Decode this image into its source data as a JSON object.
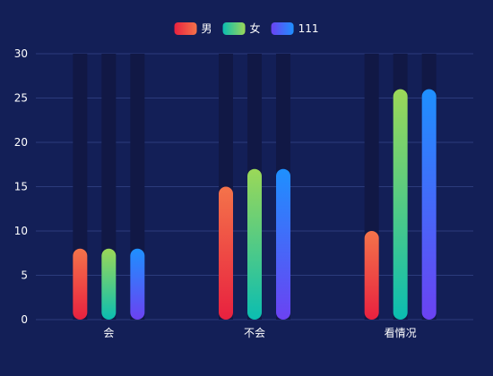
{
  "chart_data": {
    "type": "bar",
    "categories": [
      "会",
      "不会",
      "看情况"
    ],
    "series": [
      {
        "name": "男",
        "values": [
          8,
          15,
          10
        ]
      },
      {
        "name": "女",
        "values": [
          8,
          17,
          26
        ]
      },
      {
        "name": "111",
        "values": [
          8,
          17,
          26
        ]
      }
    ],
    "ylim": [
      0,
      30
    ],
    "yticks": [
      0,
      5,
      10,
      15,
      20,
      25,
      30
    ],
    "grid": true,
    "legend_position": "top-center",
    "background_color": "#131f57",
    "track_color": "#111845",
    "grid_color": "#2c3b7c",
    "series_gradients": [
      {
        "top": "#f4734a",
        "bottom": "#e8213f"
      },
      {
        "top": "#9bd858",
        "bottom": "#0bbdb1"
      },
      {
        "top": "#1e90ff",
        "bottom": "#6b42f2"
      }
    ]
  }
}
